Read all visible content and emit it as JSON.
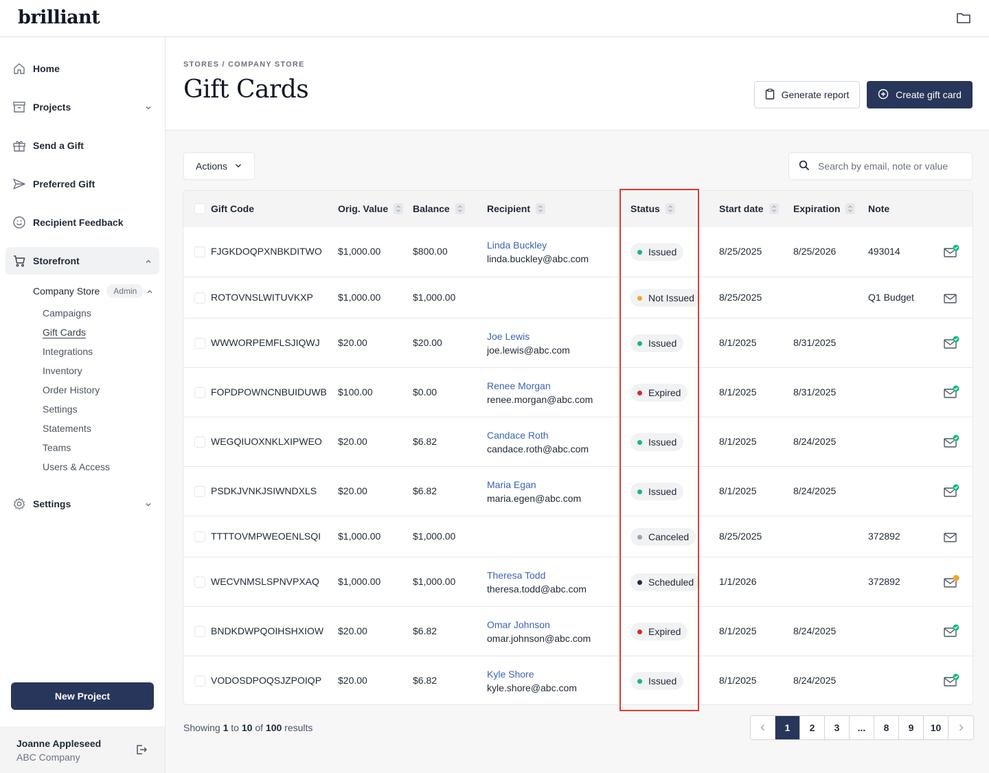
{
  "app": {
    "logo": "brilliant"
  },
  "sidebar": {
    "items": [
      {
        "label": "Home",
        "icon": "home-icon"
      },
      {
        "label": "Projects",
        "icon": "archive-icon"
      },
      {
        "label": "Send a Gift",
        "icon": "gift-icon"
      },
      {
        "label": "Preferred Gift",
        "icon": "send-icon"
      },
      {
        "label": "Recipient Feedback",
        "icon": "smile-icon"
      },
      {
        "label": "Storefront",
        "icon": "cart-icon"
      },
      {
        "label": "Settings",
        "icon": "gear-icon"
      }
    ],
    "store": {
      "label": "Company Store",
      "badge": "Admin"
    },
    "sublinks": [
      "Campaigns",
      "Gift Cards",
      "Integrations",
      "Inventory",
      "Order History",
      "Settings",
      "Statements",
      "Teams",
      "Users & Access"
    ],
    "new_project": "New Project",
    "user": {
      "name": "Joanne Appleseed",
      "company": "ABC Company"
    }
  },
  "header": {
    "breadcrumb": "STORES / COMPANY STORE",
    "title": "Gift Cards",
    "report_label": "Generate report",
    "create_label": "Create gift card"
  },
  "toolbar": {
    "actions_label": "Actions",
    "search_placeholder": "Search by email, note or value"
  },
  "table": {
    "columns": [
      "Gift Code",
      "Orig. Value",
      "Balance",
      "Recipient",
      "Status",
      "Start date",
      "Expiration",
      "Note"
    ],
    "rows": [
      {
        "code": "FJGKDOQPXNBKDITWO",
        "orig": "$1,000.00",
        "balance": "$800.00",
        "name": "Linda Buckley",
        "email": "linda.buckley@abc.com",
        "status": "Issued",
        "start": "8/25/2025",
        "exp": "8/25/2026",
        "note": "493014",
        "mail": "sent"
      },
      {
        "code": "ROTOVNSLWITUVKXP",
        "orig": "$1,000.00",
        "balance": "$1,000.00",
        "name": "",
        "email": "",
        "status": "Not Issued",
        "start": "8/25/2025",
        "exp": "",
        "note": "Q1 Budget",
        "mail": "none"
      },
      {
        "code": "WWWORPEMFLSJIQWJ",
        "orig": "$20.00",
        "balance": "$20.00",
        "name": "Joe Lewis",
        "email": "joe.lewis@abc.com",
        "status": "Issued",
        "start": "8/1/2025",
        "exp": "8/31/2025",
        "note": "",
        "mail": "sent"
      },
      {
        "code": "FOPDPOWNCNBUIDUWB",
        "orig": "$100.00",
        "balance": "$0.00",
        "name": "Renee Morgan",
        "email": "renee.morgan@abc.com",
        "status": "Expired",
        "start": "8/1/2025",
        "exp": "8/31/2025",
        "note": "",
        "mail": "sent"
      },
      {
        "code": "WEGQIUOXNKLXIPWEO",
        "orig": "$20.00",
        "balance": "$6.82",
        "name": "Candace Roth",
        "email": "candace.roth@abc.com",
        "status": "Issued",
        "start": "8/1/2025",
        "exp": "8/24/2025",
        "note": "",
        "mail": "sent"
      },
      {
        "code": "PSDKJVNKJSIWNDXLS",
        "orig": "$20.00",
        "balance": "$6.82",
        "name": "Maria Egan",
        "email": "maria.egen@abc.com",
        "status": "Issued",
        "start": "8/1/2025",
        "exp": "8/24/2025",
        "note": "",
        "mail": "sent"
      },
      {
        "code": "TTTTOVMPWEOENLSQI",
        "orig": "$1,000.00",
        "balance": "$1,000.00",
        "name": "",
        "email": "",
        "status": "Canceled",
        "start": "8/25/2025",
        "exp": "",
        "note": "372892",
        "mail": "none"
      },
      {
        "code": "WECVNMSLSPNVPXAQ",
        "orig": "$1,000.00",
        "balance": "$1,000.00",
        "name": "Theresa Todd",
        "email": "theresa.todd@abc.com",
        "status": "Scheduled",
        "start": "1/1/2026",
        "exp": "",
        "note": "372892",
        "mail": "pending"
      },
      {
        "code": "BNDKDWPQOIHSHXIOW",
        "orig": "$20.00",
        "balance": "$6.82",
        "name": "Omar Johnson",
        "email": "omar.johnson@abc.com",
        "status": "Expired",
        "start": "8/1/2025",
        "exp": "8/24/2025",
        "note": "",
        "mail": "sent"
      },
      {
        "code": "VODOSDPOQSJZPOIQP",
        "orig": "$20.00",
        "balance": "$6.82",
        "name": "Kyle Shore",
        "email": "kyle.shore@abc.com",
        "status": "Issued",
        "start": "8/1/2025",
        "exp": "8/24/2025",
        "note": "",
        "mail": "sent"
      }
    ]
  },
  "status_colors": {
    "Issued": "#10b981",
    "Not Issued": "#f5a524",
    "Expired": "#dc2626",
    "Canceled": "#9ca3af",
    "Scheduled": "#1f2a4d"
  },
  "footer": {
    "showing_prefix": "Showing",
    "from": "1",
    "to_word": "to",
    "to": "10",
    "of_word": "of",
    "total": "100",
    "suffix": "results",
    "pages": [
      "1",
      "2",
      "3",
      "...",
      "8",
      "9",
      "10"
    ],
    "current_page": "1"
  }
}
